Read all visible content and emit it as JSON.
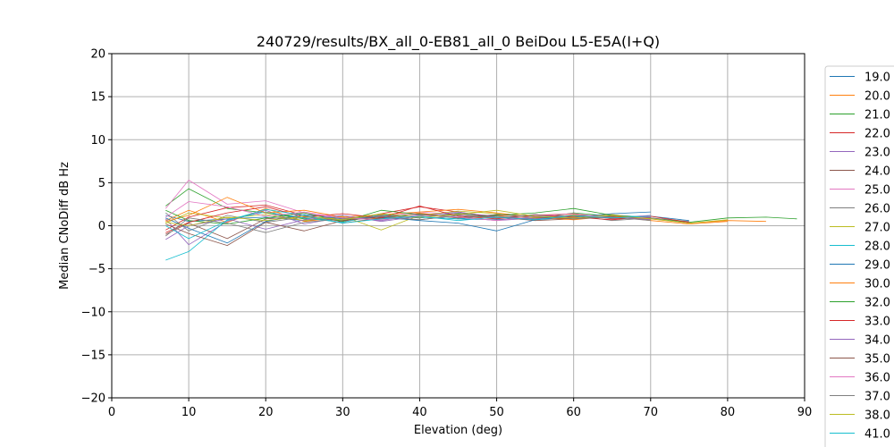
{
  "chart_data": {
    "type": "line",
    "title": "240729/results/BX_all_0-EB81_all_0 BeiDou L5-E5A(I+Q)",
    "xlabel": "Elevation (deg)",
    "ylabel": "Median CNoDiff dB Hz",
    "xlim": [
      0,
      90
    ],
    "ylim": [
      -20,
      20
    ],
    "xticks": [
      "0",
      "10",
      "20",
      "30",
      "40",
      "50",
      "60",
      "70",
      "80",
      "90"
    ],
    "yticks": [
      "20",
      "15",
      "10",
      "5",
      "0",
      "−5",
      "−10",
      "−15",
      "−20"
    ],
    "grid": true,
    "legend_position": "right, outside plot area (partially clipped)",
    "series": [
      {
        "name": "19.0",
        "color": "#1f77b4",
        "x": [
          7,
          10,
          15,
          20,
          25,
          30,
          35,
          40,
          45,
          50,
          55,
          60,
          65,
          70,
          75
        ],
        "y": [
          1.2,
          0.5,
          0.8,
          1.0,
          0.6,
          0.9,
          1.1,
          1.0,
          0.8,
          0.7,
          1.0,
          1.2,
          0.9,
          1.1,
          0.6
        ]
      },
      {
        "name": "20.0",
        "color": "#ff7f0e",
        "x": [
          7,
          10,
          15,
          20,
          25,
          30,
          35,
          40,
          45,
          50,
          55,
          60,
          65,
          70,
          75,
          80,
          85
        ],
        "y": [
          0.6,
          1.8,
          0.4,
          2.0,
          0.5,
          1.0,
          0.8,
          1.5,
          0.9,
          1.2,
          0.7,
          1.3,
          1.0,
          0.8,
          0.3,
          0.6,
          0.5
        ]
      },
      {
        "name": "21.0",
        "color": "#2ca02c",
        "x": [
          7,
          10,
          15,
          20,
          25,
          30,
          35,
          40,
          45,
          50,
          55,
          60,
          65,
          70,
          75,
          80,
          85,
          89
        ],
        "y": [
          2.3,
          4.3,
          2.0,
          1.5,
          0.8,
          0.6,
          1.2,
          0.9,
          1.4,
          1.0,
          0.8,
          1.5,
          1.1,
          0.9,
          0.4,
          0.9,
          1.0,
          0.8
        ]
      },
      {
        "name": "22.0",
        "color": "#d62728",
        "x": [
          7,
          10,
          15,
          20,
          25,
          30,
          35,
          40,
          45,
          50,
          55,
          60,
          65,
          70
        ],
        "y": [
          -0.5,
          1.0,
          2.1,
          2.4,
          1.2,
          0.5,
          1.4,
          2.2,
          1.6,
          0.9,
          1.2,
          1.4,
          0.8,
          1.0
        ]
      },
      {
        "name": "23.0",
        "color": "#9467bd",
        "x": [
          7,
          10,
          15,
          20,
          25,
          30,
          35,
          40,
          45,
          50,
          55,
          60,
          65,
          70
        ],
        "y": [
          0.8,
          -2.2,
          0.5,
          1.8,
          0.2,
          1.0,
          0.6,
          1.3,
          1.0,
          0.6,
          0.9,
          1.1,
          0.9,
          1.2
        ]
      },
      {
        "name": "24.0",
        "color": "#8c564b",
        "x": [
          7,
          10,
          15,
          20,
          25,
          30,
          35,
          40,
          45,
          50,
          55,
          60,
          65,
          70
        ],
        "y": [
          -1.0,
          0.3,
          -1.5,
          0.8,
          1.1,
          0.3,
          0.9,
          0.7,
          1.2,
          1.0,
          0.6,
          0.8,
          1.0,
          0.7
        ]
      },
      {
        "name": "25.0",
        "color": "#e377c2",
        "x": [
          7,
          10,
          15,
          20,
          25,
          30,
          35,
          40,
          45,
          50,
          55,
          60,
          65,
          70
        ],
        "y": [
          2.0,
          5.3,
          2.5,
          2.9,
          1.5,
          0.8,
          1.1,
          1.6,
          1.3,
          0.9,
          1.2,
          1.0,
          1.3,
          0.9
        ]
      },
      {
        "name": "26.0",
        "color": "#7f7f7f",
        "x": [
          7,
          10,
          15,
          20,
          25,
          30,
          35,
          40,
          45,
          50,
          55,
          60,
          65,
          70,
          75
        ],
        "y": [
          1.5,
          -0.6,
          1.2,
          0.4,
          1.0,
          0.7,
          1.2,
          0.9,
          1.5,
          1.1,
          0.8,
          1.2,
          0.6,
          0.9,
          0.5
        ]
      },
      {
        "name": "27.0",
        "color": "#bcbd22",
        "x": [
          7,
          10,
          15,
          20,
          25,
          30,
          35,
          40,
          45,
          50,
          55,
          60,
          65,
          70
        ],
        "y": [
          0.3,
          1.5,
          0.9,
          1.3,
          0.6,
          1.1,
          -0.5,
          1.2,
          1.7,
          1.4,
          0.9,
          1.1,
          1.3,
          0.8
        ]
      },
      {
        "name": "28.0",
        "color": "#17becf",
        "x": [
          7,
          10,
          15,
          20,
          25,
          30,
          35,
          40,
          45,
          50,
          55,
          60,
          65,
          70
        ],
        "y": [
          -4.0,
          -3.0,
          0.7,
          1.6,
          0.9,
          0.4,
          1.3,
          1.0,
          0.8,
          1.3,
          1.1,
          0.9,
          1.2,
          1.0
        ]
      },
      {
        "name": "29.0",
        "color": "#1f77b4",
        "x": [
          7,
          10,
          15,
          20,
          25,
          30,
          35,
          40,
          45,
          50,
          55,
          60,
          65,
          70
        ],
        "y": [
          0.9,
          -0.3,
          -2.0,
          0.5,
          1.3,
          0.8,
          1.0,
          0.6,
          0.3,
          -0.6,
          0.7,
          1.0,
          1.4,
          1.6
        ]
      },
      {
        "name": "30.0",
        "color": "#ff7f0e",
        "x": [
          7,
          10,
          15,
          20,
          25,
          30,
          35,
          40,
          45,
          50,
          55,
          60,
          65,
          70,
          75,
          80
        ],
        "y": [
          0.5,
          1.2,
          3.3,
          1.5,
          1.8,
          1.0,
          1.3,
          1.6,
          1.9,
          1.5,
          1.0,
          0.7,
          1.1,
          0.6,
          0.2,
          0.5
        ]
      },
      {
        "name": "32.0",
        "color": "#2ca02c",
        "x": [
          7,
          10,
          15,
          20,
          25,
          30,
          35,
          40,
          45,
          50,
          55,
          60,
          65,
          70
        ],
        "y": [
          1.8,
          0.6,
          0.2,
          0.9,
          1.5,
          0.5,
          1.8,
          1.3,
          0.9,
          1.2,
          1.5,
          2.0,
          1.2,
          0.9
        ]
      },
      {
        "name": "33.0",
        "color": "#d62728",
        "x": [
          7,
          10,
          15,
          20,
          25,
          30,
          35,
          40,
          45,
          50,
          55,
          60,
          65,
          70,
          75
        ],
        "y": [
          -0.8,
          0.4,
          1.5,
          2.2,
          1.0,
          1.4,
          0.9,
          2.3,
          1.1,
          0.8,
          1.3,
          1.0,
          0.7,
          1.1,
          0.4
        ]
      },
      {
        "name": "34.0",
        "color": "#9467bd",
        "x": [
          7,
          10,
          15,
          20,
          25,
          30,
          35,
          40,
          45,
          50,
          55,
          60,
          65,
          70
        ],
        "y": [
          -1.6,
          0.0,
          0.8,
          -0.4,
          0.7,
          1.2,
          0.5,
          1.1,
          1.6,
          1.0,
          0.8,
          1.2,
          1.0,
          0.7
        ]
      },
      {
        "name": "35.0",
        "color": "#8c564b",
        "x": [
          7,
          10,
          15,
          20,
          25,
          30,
          35,
          40,
          45,
          50,
          55,
          60,
          65,
          70
        ],
        "y": [
          0.2,
          -0.9,
          -2.3,
          0.4,
          -0.6,
          0.6,
          1.0,
          1.4,
          0.9,
          1.3,
          1.0,
          0.8,
          1.1,
          0.9
        ]
      },
      {
        "name": "36.0",
        "color": "#e377c2",
        "x": [
          7,
          10,
          15,
          20,
          25,
          30,
          35,
          40,
          45,
          50,
          55,
          60,
          65,
          70
        ],
        "y": [
          1.0,
          2.8,
          2.2,
          1.1,
          1.6,
          0.9,
          0.7,
          1.2,
          1.0,
          0.6,
          1.1,
          1.4,
          0.9,
          1.0
        ]
      },
      {
        "name": "37.0",
        "color": "#7f7f7f",
        "x": [
          7,
          10,
          15,
          20,
          25,
          30,
          35,
          40,
          45,
          50,
          55,
          60,
          65,
          70
        ],
        "y": [
          -1.2,
          0.9,
          0.3,
          -0.8,
          0.4,
          0.8,
          1.1,
          0.7,
          1.2,
          0.9,
          1.3,
          0.8,
          1.0,
          0.6
        ]
      },
      {
        "name": "38.0",
        "color": "#bcbd22",
        "x": [
          7,
          10,
          15,
          20,
          25,
          30,
          35,
          40,
          45,
          50,
          55,
          60,
          65,
          70,
          75,
          80
        ],
        "y": [
          0.4,
          0.0,
          1.0,
          0.6,
          1.1,
          0.7,
          1.4,
          1.0,
          1.3,
          1.8,
          1.1,
          0.9,
          1.2,
          0.8,
          0.3,
          0.7
        ]
      },
      {
        "name": "41.0",
        "color": "#17becf",
        "x": [
          7,
          10,
          15,
          20,
          25,
          30,
          35,
          40,
          45,
          50,
          55,
          60,
          65,
          70
        ],
        "y": [
          0.0,
          -1.5,
          0.6,
          1.9,
          1.2,
          0.3,
          0.8,
          1.1,
          0.6,
          1.0,
          0.7,
          1.2,
          0.9,
          1.1
        ]
      }
    ]
  }
}
